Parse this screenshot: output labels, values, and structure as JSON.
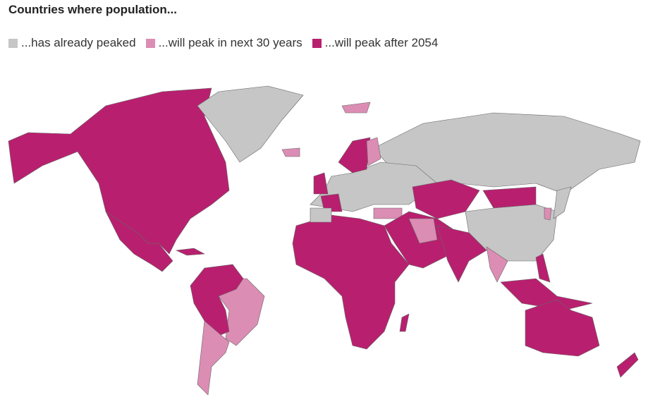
{
  "title": "Countries where population...",
  "legend": [
    {
      "label": "...has already peaked",
      "color": "#c6c6c6"
    },
    {
      "label": "...will peak in next 30 years",
      "color": "#dc8db4"
    },
    {
      "label": "...will peak after 2054",
      "color": "#b8206f"
    }
  ]
}
